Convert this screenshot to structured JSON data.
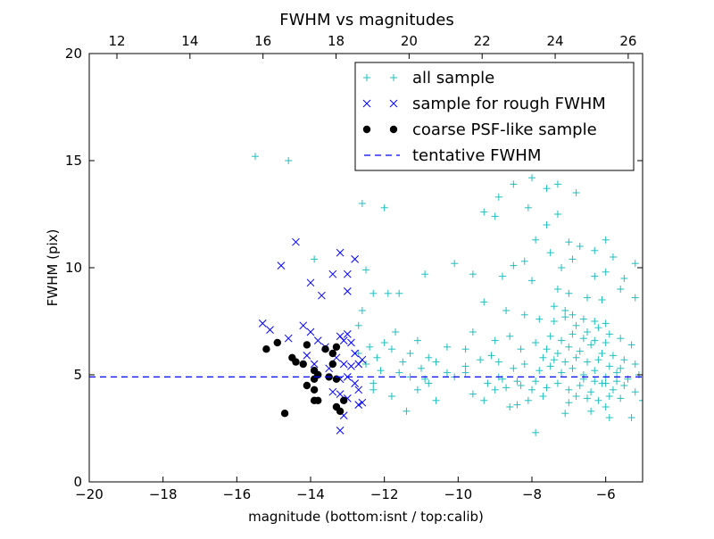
{
  "chart_data": {
    "type": "scatter",
    "title": "FWHM vs magnitudes",
    "xlabel": "magnitude (bottom:isnt / top:calib)",
    "ylabel": "FWHM (pix)",
    "xlim": [
      -20,
      -5
    ],
    "ylim": [
      0,
      20
    ],
    "x_ticks": [
      "−20",
      "−18",
      "−16",
      "−14",
      "−12",
      "−10",
      "−8",
      "−6"
    ],
    "y_ticks": [
      "0",
      "5",
      "10",
      "15",
      "20"
    ],
    "top_axis": {
      "ticks": [
        "12",
        "14",
        "16",
        "18",
        "20",
        "22",
        "24",
        "26"
      ],
      "tick_positions_bottom_units": [
        -19.25,
        -17.27,
        -15.29,
        -13.31,
        -11.33,
        -9.35,
        -7.37,
        -5.39
      ]
    },
    "legend_position": "top-right",
    "grid": false,
    "series": [
      {
        "name": "all sample",
        "marker": "plus",
        "color": "#1fbfbf",
        "points": [
          [
            -15.5,
            15.2
          ],
          [
            -14.6,
            15.0
          ],
          [
            -12.6,
            13.0
          ],
          [
            -12.0,
            12.8
          ],
          [
            -13.9,
            10.4
          ],
          [
            -12.5,
            9.9
          ],
          [
            -12.3,
            8.8
          ],
          [
            -11.9,
            8.8
          ],
          [
            -11.6,
            8.8
          ],
          [
            -12.6,
            8.0
          ],
          [
            -12.7,
            7.3
          ],
          [
            -11.7,
            7.0
          ],
          [
            -11.1,
            6.6
          ],
          [
            -12.0,
            6.5
          ],
          [
            -12.4,
            6.3
          ],
          [
            -11.8,
            6.2
          ],
          [
            -11.3,
            6.0
          ],
          [
            -12.7,
            6.0
          ],
          [
            -12.2,
            5.8
          ],
          [
            -11.5,
            5.6
          ],
          [
            -10.8,
            5.8
          ],
          [
            -10.6,
            5.6
          ],
          [
            -11.0,
            5.3
          ],
          [
            -12.5,
            5.5
          ],
          [
            -12.1,
            5.2
          ],
          [
            -11.6,
            5.1
          ],
          [
            -11.3,
            4.9
          ],
          [
            -10.9,
            4.8
          ],
          [
            -12.3,
            4.6
          ],
          [
            -10.3,
            5.1
          ],
          [
            -10.1,
            4.9
          ],
          [
            -9.8,
            5.1
          ],
          [
            -12.3,
            4.3
          ],
          [
            -11.8,
            4.0
          ],
          [
            -11.1,
            4.3
          ],
          [
            -10.6,
            3.8
          ],
          [
            -9.6,
            4.1
          ],
          [
            -9.3,
            3.8
          ],
          [
            -11.4,
            3.3
          ],
          [
            -10.8,
            4.6
          ],
          [
            -10.1,
            10.2
          ],
          [
            -9.6,
            9.7
          ],
          [
            -10.9,
            9.7
          ],
          [
            -10.3,
            6.3
          ],
          [
            -9.8,
            6.2
          ],
          [
            -9.1,
            5.9
          ],
          [
            -8.9,
            4.9
          ],
          [
            -9.0,
            4.3
          ],
          [
            -8.7,
            4.4
          ],
          [
            -8.4,
            4.7
          ],
          [
            -8.0,
            4.3
          ],
          [
            -7.7,
            4.0
          ],
          [
            -8.1,
            3.8
          ],
          [
            -8.4,
            3.6
          ],
          [
            -8.6,
            3.5
          ],
          [
            -7.9,
            2.3
          ],
          [
            -7.1,
            3.2
          ],
          [
            -6.4,
            3.3
          ],
          [
            -5.9,
            3.0
          ],
          [
            -5.3,
            3.0
          ],
          [
            -6.0,
            3.5
          ],
          [
            -5.0,
            3.8
          ],
          [
            -9.3,
            12.6
          ],
          [
            -9.0,
            12.4
          ],
          [
            -8.9,
            13.3
          ],
          [
            -8.5,
            13.9
          ],
          [
            -8.0,
            14.2
          ],
          [
            -7.6,
            13.7
          ],
          [
            -7.3,
            13.9
          ],
          [
            -6.8,
            13.5
          ],
          [
            -8.1,
            12.8
          ],
          [
            -7.3,
            12.5
          ],
          [
            -7.6,
            12.0
          ],
          [
            -7.0,
            11.2
          ],
          [
            -6.7,
            11.0
          ],
          [
            -6.3,
            10.8
          ],
          [
            -6.0,
            11.3
          ],
          [
            -5.2,
            10.2
          ],
          [
            -7.9,
            11.3
          ],
          [
            -7.5,
            10.7
          ],
          [
            -8.2,
            10.3
          ],
          [
            -8.5,
            10.1
          ],
          [
            -7.2,
            10.0
          ],
          [
            -6.9,
            10.4
          ],
          [
            -6.3,
            9.6
          ],
          [
            -5.8,
            10.5
          ],
          [
            -6.0,
            9.8
          ],
          [
            -5.5,
            9.5
          ],
          [
            -8.8,
            9.6
          ],
          [
            -8.0,
            9.4
          ],
          [
            -7.3,
            9.0
          ],
          [
            -7.0,
            8.8
          ],
          [
            -6.5,
            8.6
          ],
          [
            -6.1,
            8.5
          ],
          [
            -5.6,
            9.0
          ],
          [
            -5.2,
            8.6
          ],
          [
            -9.3,
            8.4
          ],
          [
            -8.7,
            8.0
          ],
          [
            -8.2,
            7.8
          ],
          [
            -7.8,
            7.6
          ],
          [
            -7.4,
            7.5
          ],
          [
            -7.1,
            7.7
          ],
          [
            -6.8,
            7.3
          ],
          [
            -6.5,
            7.0
          ],
          [
            -6.2,
            7.2
          ],
          [
            -5.9,
            6.9
          ],
          [
            -5.6,
            6.7
          ],
          [
            -5.3,
            6.4
          ],
          [
            -9.6,
            7.0
          ],
          [
            -9.0,
            6.6
          ],
          [
            -8.6,
            6.8
          ],
          [
            -8.3,
            6.2
          ],
          [
            -7.9,
            6.5
          ],
          [
            -7.6,
            6.2
          ],
          [
            -7.3,
            6.0
          ],
          [
            -7.0,
            6.3
          ],
          [
            -6.7,
            6.1
          ],
          [
            -6.4,
            6.4
          ],
          [
            -6.1,
            6.0
          ],
          [
            -5.8,
            5.9
          ],
          [
            -5.5,
            5.7
          ],
          [
            -5.2,
            5.5
          ],
          [
            -9.8,
            5.4
          ],
          [
            -9.4,
            5.7
          ],
          [
            -8.9,
            5.6
          ],
          [
            -8.5,
            5.3
          ],
          [
            -8.2,
            5.5
          ],
          [
            -7.8,
            5.2
          ],
          [
            -7.5,
            5.4
          ],
          [
            -7.2,
            5.1
          ],
          [
            -6.9,
            5.3
          ],
          [
            -6.6,
            5.0
          ],
          [
            -6.3,
            5.2
          ],
          [
            -6.0,
            4.9
          ],
          [
            -5.7,
            5.1
          ],
          [
            -5.4,
            4.8
          ],
          [
            -5.1,
            5.0
          ],
          [
            -9.2,
            4.6
          ],
          [
            -8.8,
            4.8
          ],
          [
            -8.3,
            4.5
          ],
          [
            -7.9,
            4.7
          ],
          [
            -7.6,
            4.4
          ],
          [
            -7.3,
            4.6
          ],
          [
            -7.0,
            4.3
          ],
          [
            -6.7,
            4.5
          ],
          [
            -6.4,
            4.2
          ],
          [
            -6.1,
            4.6
          ],
          [
            -5.8,
            4.3
          ],
          [
            -5.5,
            4.5
          ],
          [
            -5.2,
            4.2
          ],
          [
            -7.4,
            8.2
          ],
          [
            -7.1,
            8.0
          ],
          [
            -6.9,
            7.8
          ],
          [
            -6.6,
            7.6
          ],
          [
            -6.3,
            7.5
          ],
          [
            -6.0,
            7.4
          ],
          [
            -7.5,
            6.8
          ],
          [
            -7.2,
            6.6
          ],
          [
            -6.9,
            6.9
          ],
          [
            -6.6,
            6.7
          ],
          [
            -6.3,
            6.6
          ],
          [
            -6.0,
            6.5
          ],
          [
            -7.7,
            5.8
          ],
          [
            -7.4,
            5.7
          ],
          [
            -7.1,
            5.6
          ],
          [
            -6.8,
            5.8
          ],
          [
            -6.5,
            5.6
          ],
          [
            -6.2,
            5.7
          ],
          [
            -5.9,
            5.4
          ],
          [
            -5.6,
            5.3
          ],
          [
            -6.6,
            4.8
          ],
          [
            -6.3,
            4.7
          ],
          [
            -6.0,
            4.6
          ],
          [
            -5.7,
            4.7
          ],
          [
            -6.8,
            4.0
          ],
          [
            -6.5,
            3.9
          ],
          [
            -6.2,
            3.8
          ],
          [
            -5.9,
            4.0
          ],
          [
            -5.6,
            3.9
          ],
          [
            -7.0,
            3.7
          ]
        ]
      },
      {
        "name": "sample for rough FWHM",
        "marker": "x",
        "color": "#0000ff",
        "points": [
          [
            -14.4,
            11.2
          ],
          [
            -14.8,
            10.1
          ],
          [
            -13.2,
            10.7
          ],
          [
            -12.8,
            10.4
          ],
          [
            -14.0,
            9.3
          ],
          [
            -13.4,
            9.7
          ],
          [
            -13.0,
            9.7
          ],
          [
            -13.7,
            8.7
          ],
          [
            -13.0,
            8.9
          ],
          [
            -15.3,
            7.4
          ],
          [
            -15.1,
            7.1
          ],
          [
            -14.6,
            6.7
          ],
          [
            -14.2,
            7.3
          ],
          [
            -14.0,
            7.0
          ],
          [
            -13.8,
            6.6
          ],
          [
            -13.6,
            6.3
          ],
          [
            -13.2,
            6.8
          ],
          [
            -13.1,
            6.6
          ],
          [
            -13.0,
            6.9
          ],
          [
            -12.9,
            6.5
          ],
          [
            -12.8,
            6.0
          ],
          [
            -13.3,
            5.8
          ],
          [
            -13.1,
            5.5
          ],
          [
            -12.9,
            5.4
          ],
          [
            -12.7,
            5.5
          ],
          [
            -12.6,
            5.7
          ],
          [
            -14.1,
            5.9
          ],
          [
            -13.9,
            5.5
          ],
          [
            -13.5,
            5.3
          ],
          [
            -13.2,
            4.8
          ],
          [
            -13.0,
            4.9
          ],
          [
            -12.8,
            4.6
          ],
          [
            -12.7,
            4.3
          ],
          [
            -13.2,
            4.1
          ],
          [
            -13.0,
            3.9
          ],
          [
            -12.7,
            3.6
          ],
          [
            -13.1,
            3.1
          ],
          [
            -13.2,
            2.4
          ],
          [
            -13.4,
            4.2
          ],
          [
            -12.6,
            3.7
          ]
        ]
      },
      {
        "name": "coarse PSF-like sample",
        "marker": "circle",
        "color": "#000000",
        "points": [
          [
            -15.2,
            6.2
          ],
          [
            -14.9,
            6.5
          ],
          [
            -14.1,
            6.4
          ],
          [
            -14.5,
            5.8
          ],
          [
            -14.4,
            5.6
          ],
          [
            -14.2,
            5.5
          ],
          [
            -13.6,
            6.2
          ],
          [
            -13.4,
            6.0
          ],
          [
            -13.3,
            6.3
          ],
          [
            -13.9,
            5.2
          ],
          [
            -13.8,
            5.0
          ],
          [
            -13.9,
            4.8
          ],
          [
            -13.5,
            4.9
          ],
          [
            -13.3,
            4.8
          ],
          [
            -14.1,
            4.5
          ],
          [
            -13.9,
            4.3
          ],
          [
            -13.8,
            3.8
          ],
          [
            -13.9,
            3.8
          ],
          [
            -13.3,
            3.5
          ],
          [
            -13.2,
            3.3
          ],
          [
            -13.1,
            3.8
          ],
          [
            -14.7,
            3.2
          ],
          [
            -13.4,
            5.5
          ]
        ]
      },
      {
        "name": "tentative FWHM",
        "marker": "dashed-line",
        "color": "#0000ff",
        "y": 4.9
      }
    ]
  }
}
